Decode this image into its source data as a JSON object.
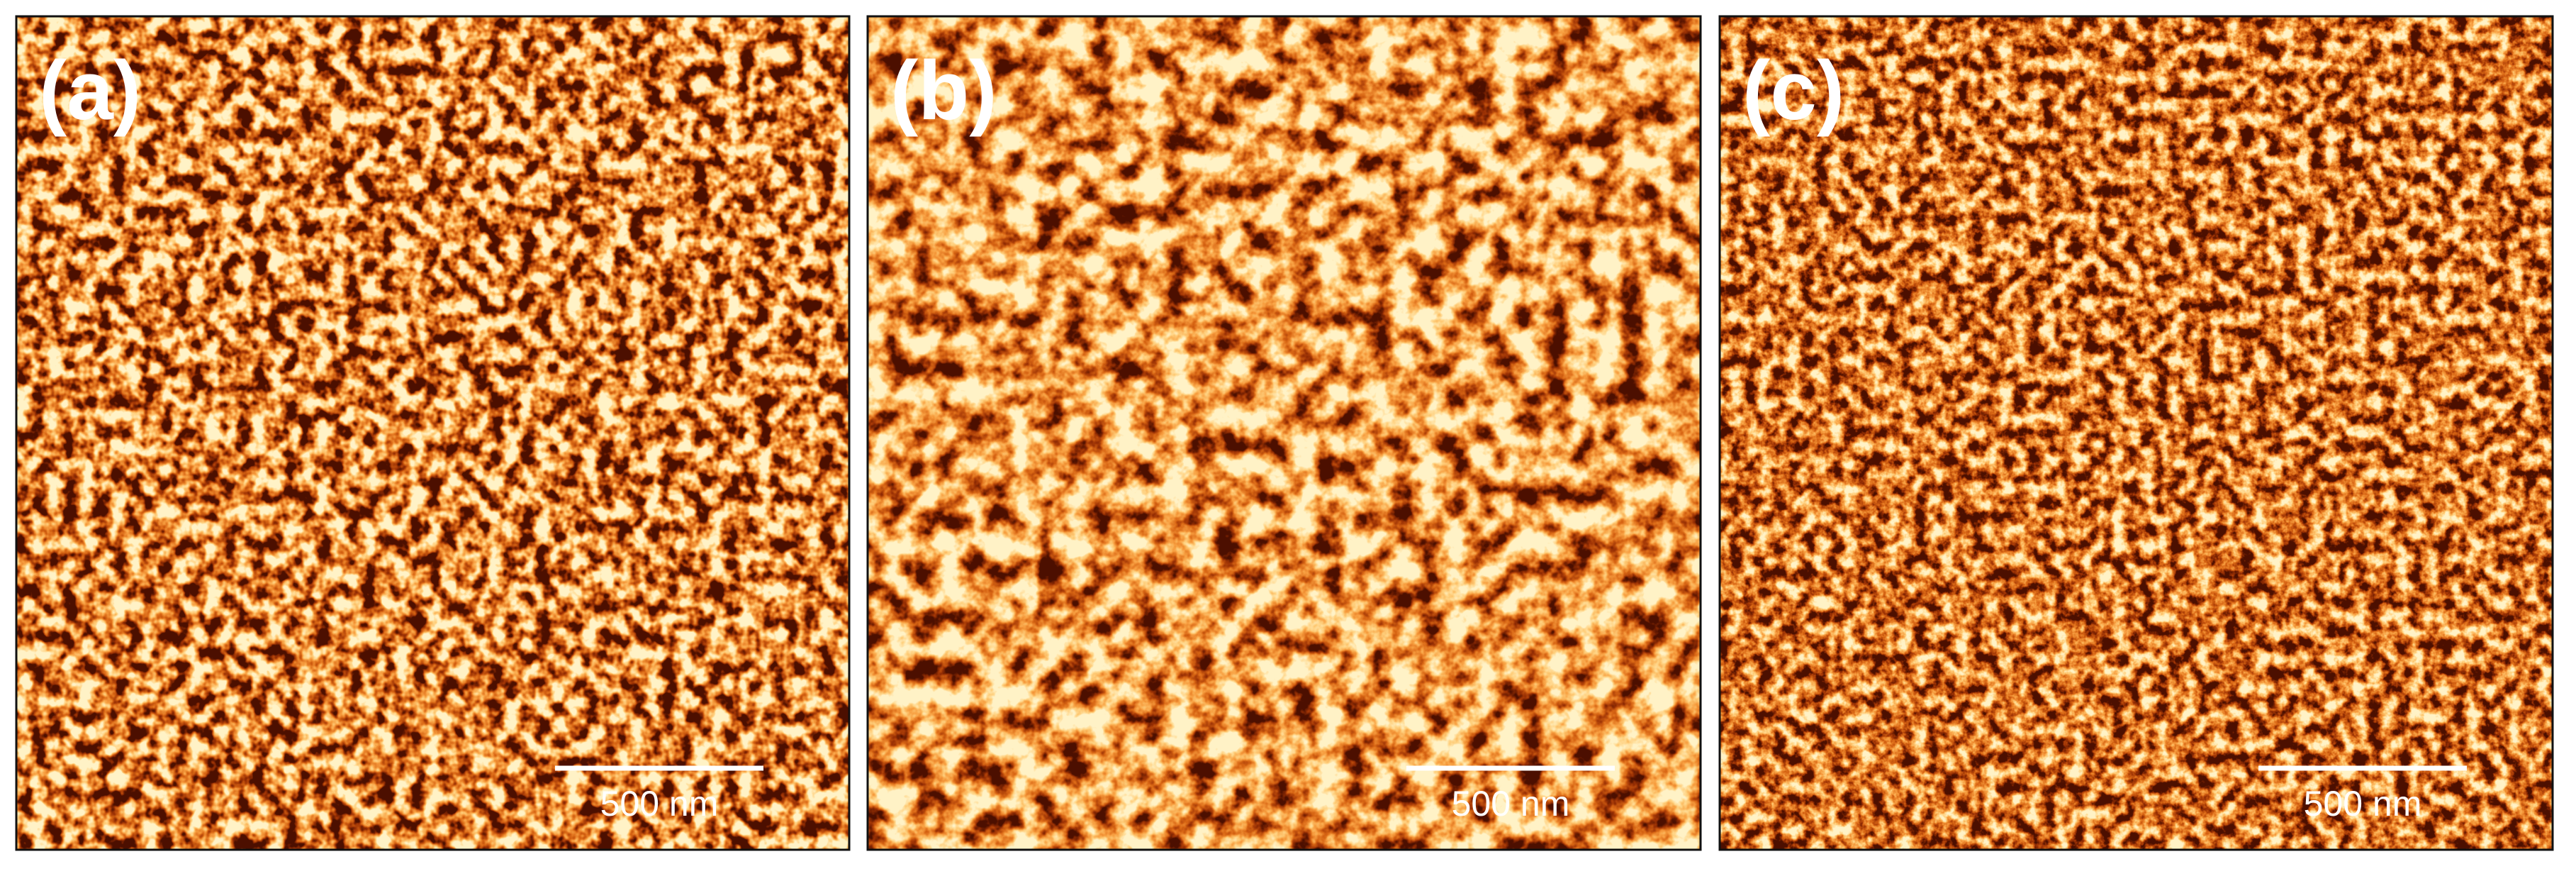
{
  "panels": [
    {
      "label": "(a)",
      "scale_bar": "500 nm"
    },
    {
      "label": "(b)",
      "scale_bar": "500 nm"
    },
    {
      "label": "(c)",
      "scale_bar": "500 nm"
    }
  ]
}
